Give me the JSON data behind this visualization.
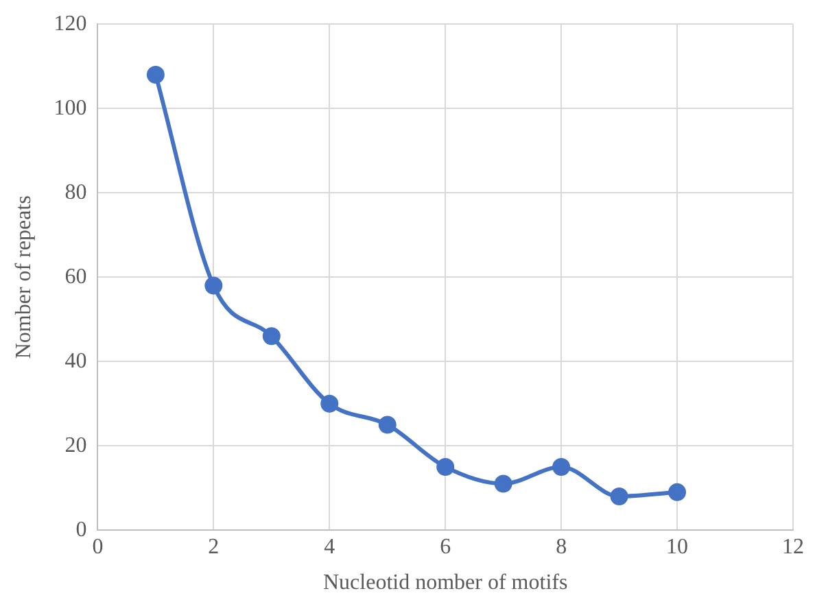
{
  "chart_data": {
    "type": "line",
    "xlabel": "Nucleotid nomber of motifs",
    "ylabel": "Nomber of repeats",
    "x": [
      1,
      2,
      3,
      4,
      5,
      6,
      7,
      8,
      9,
      10
    ],
    "series": [
      {
        "color": "#4472c4",
        "values": [
          108,
          58,
          46,
          30,
          25,
          15,
          11,
          15,
          8,
          9
        ]
      }
    ],
    "xlim": [
      0,
      12
    ],
    "xticks": [
      0,
      2,
      4,
      6,
      8,
      10,
      12
    ],
    "ylim": [
      0,
      120
    ],
    "yticks": [
      0,
      20,
      40,
      60,
      80,
      100,
      120
    ],
    "grid": true,
    "marker": "circle",
    "line_style": "solid"
  }
}
